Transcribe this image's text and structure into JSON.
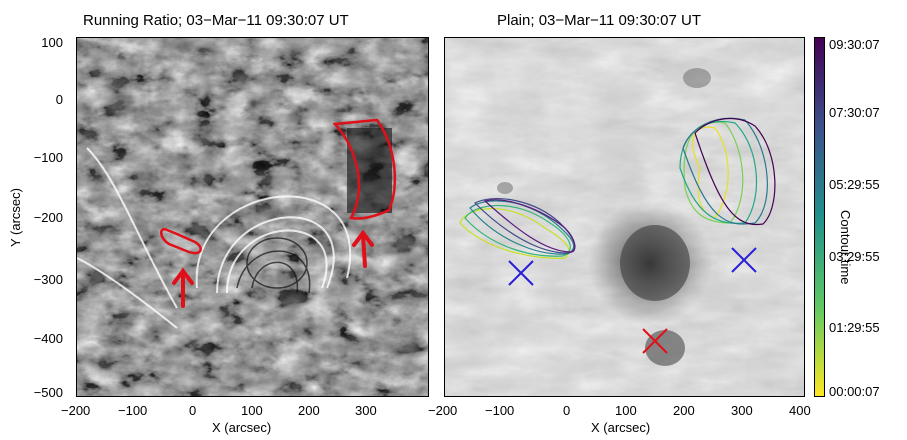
{
  "left_panel": {
    "title": "Running Ratio; 03−Mar−11 09:30:07 UT",
    "x_label": "X (arcsec)",
    "y_label": "Y (arcsec)",
    "x_ticks": [
      "−200",
      "−100",
      "0",
      "100",
      "200",
      "300"
    ],
    "y_ticks": [
      "100",
      "0",
      "−100",
      "−200",
      "−300",
      "−400",
      "−500"
    ],
    "annotation_color": "#e0101a"
  },
  "right_panel": {
    "title": "Plain; 03−Mar−11 09:30:07 UT",
    "x_label": "X (arcsec)",
    "x_ticks": [
      "−200",
      "−100",
      "0",
      "100",
      "200",
      "300",
      "400"
    ],
    "markers": [
      {
        "name": "blue-x-west",
        "color": "#2a1fd6"
      },
      {
        "name": "blue-x-east",
        "color": "#2a1fd6"
      },
      {
        "name": "red-x",
        "color": "#e0101a"
      }
    ]
  },
  "colorbar": {
    "label": "Contour time",
    "ticks": [
      "09:30:07",
      "07:30:07",
      "05:29:55",
      "03:29:55",
      "01:29:55",
      "00:00:07"
    ],
    "colormap": "viridis-reversed"
  }
}
